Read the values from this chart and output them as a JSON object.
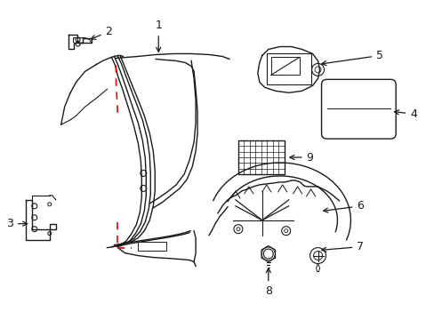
{
  "bg_color": "#ffffff",
  "line_color": "#1a1a1a",
  "red_color": "#ee0000",
  "fig_width": 4.89,
  "fig_height": 3.6,
  "dpi": 100
}
